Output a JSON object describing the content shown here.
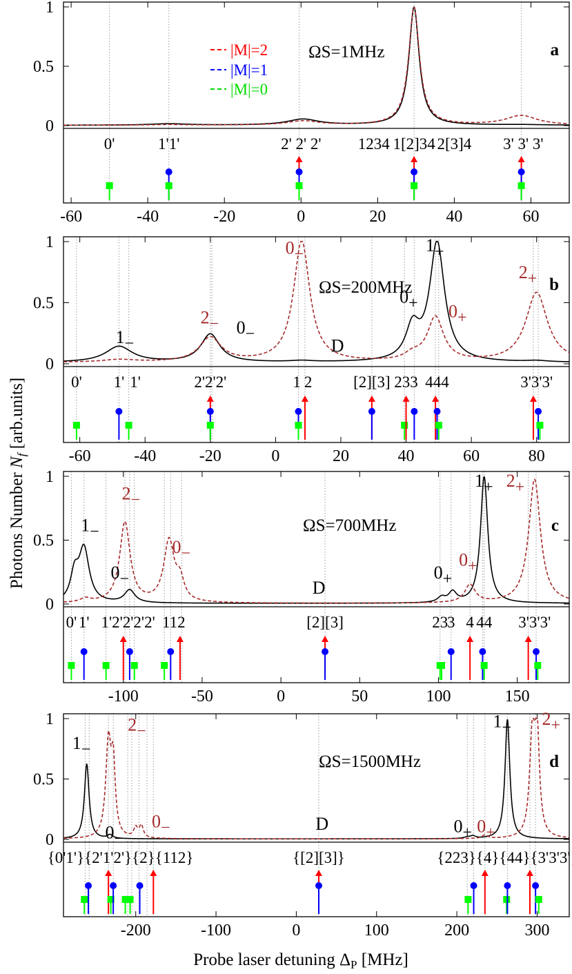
{
  "figure": {
    "ylabel": "Photons Number N_f [arb.units]",
    "ylabel_main": "Photons Number ",
    "ylabel_sym": "N",
    "ylabel_sub": "f",
    "ylabel_unit": " [arb.units]",
    "xlabel_pre": "Probe laser detuning Δ",
    "xlabel_sub": "P",
    "xlabel_post": " [MHz]",
    "legend": [
      {
        "label": "|M|=2",
        "color": "#ff0000"
      },
      {
        "label": "|M|=1",
        "color": "#0000ff"
      },
      {
        "label": "|M|=0",
        "color": "#00dd00"
      }
    ]
  },
  "colors": {
    "solid_curve": "#000000",
    "dashed_curve": "#a52a2a",
    "M2": "#ff0000",
    "M1": "#0000ff",
    "M0": "#00ff00",
    "guide": "#999999",
    "peak_label_red": "#a52a2a"
  },
  "chart_data": [
    {
      "type": "line",
      "panel": "a",
      "omega_label": "ΩS=1MHz",
      "xlim": [
        -62,
        70
      ],
      "ylim": [
        0,
        1
      ],
      "xticks": [
        -60,
        -40,
        -20,
        0,
        20,
        40,
        60
      ],
      "yticks": [
        0,
        0.5,
        1
      ],
      "ytick_labels": [
        "0",
        "0.5",
        "1"
      ],
      "grid": false,
      "series": [
        {
          "style": "solid",
          "baseline": 0.003,
          "peaks": [
            {
              "x": 29.5,
              "h": 0.995,
              "w": 1.6
            },
            {
              "x": 0.5,
              "h": 0.05,
              "w": 5
            },
            {
              "x": -34.5,
              "h": 0.012,
              "w": 6
            },
            {
              "x": 57.5,
              "h": 0.004,
              "w": 6
            }
          ]
        },
        {
          "style": "dashed",
          "baseline": 0.003,
          "peaks": [
            {
              "x": 29.5,
              "h": 0.99,
              "w": 1.7
            },
            {
              "x": 0.5,
              "h": 0.035,
              "w": 5
            },
            {
              "x": -34.5,
              "h": 0.005,
              "w": 6
            },
            {
              "x": 57.5,
              "h": 0.08,
              "w": 5
            }
          ]
        }
      ],
      "guides": [
        -34.5,
        -0.5,
        29.5,
        57.5,
        -50
      ],
      "levels": [
        {
          "x": -50,
          "m": 0
        },
        {
          "x": -34.5,
          "m": 1
        },
        {
          "x": -34.5,
          "m": 0
        },
        {
          "x": -0.5,
          "m": 2
        },
        {
          "x": -0.5,
          "m": 1
        },
        {
          "x": -0.5,
          "m": 0
        },
        {
          "x": 29.5,
          "m": 2
        },
        {
          "x": 29.5,
          "m": 1
        },
        {
          "x": 29.5,
          "m": 0
        },
        {
          "x": 57.5,
          "m": 2
        },
        {
          "x": 57.5,
          "m": 1
        },
        {
          "x": 57.5,
          "m": 0
        }
      ],
      "state_labels": [
        {
          "text": "0'",
          "x": -50
        },
        {
          "text": "1'1'",
          "x": -34.5
        },
        {
          "text": "2' 2' 2'",
          "x": 0
        },
        {
          "text": "1234",
          "x": 19
        },
        {
          "text": "1[2]34",
          "x": 29.5
        },
        {
          "text": "2[3]4",
          "x": 40
        },
        {
          "text": "3' 3' 3'",
          "x": 58
        }
      ],
      "peak_labels": []
    },
    {
      "type": "line",
      "panel": "b",
      "omega_label": "ΩS=200MHz",
      "xlim": [
        -65,
        90
      ],
      "ylim": [
        0,
        1
      ],
      "xticks": [
        -60,
        -40,
        -20,
        0,
        20,
        40,
        60,
        80
      ],
      "yticks": [
        0,
        0.5,
        1
      ],
      "ytick_labels": [
        "0",
        "0.5",
        "1"
      ],
      "grid": false,
      "series": [
        {
          "style": "solid",
          "baseline": 0.01,
          "peaks": [
            {
              "x": 49.5,
              "h": 0.97,
              "w": 2.8
            },
            {
              "x": 42,
              "h": 0.26,
              "w": 2.5
            },
            {
              "x": -48,
              "h": 0.13,
              "w": 5
            },
            {
              "x": -20,
              "h": 0.23,
              "w": 3.5
            },
            {
              "x": 80,
              "h": 0.01,
              "w": 4
            },
            {
              "x": 8,
              "h": 0.01,
              "w": 4
            }
          ]
        },
        {
          "style": "dashed",
          "baseline": 0.01,
          "peaks": [
            {
              "x": 8,
              "h": 0.99,
              "w": 3
            },
            {
              "x": 80,
              "h": 0.57,
              "w": 4
            },
            {
              "x": 49,
              "h": 0.36,
              "w": 3
            },
            {
              "x": -20,
              "h": 0.2,
              "w": 4
            },
            {
              "x": -48,
              "h": 0.02,
              "w": 6
            },
            {
              "x": 42,
              "h": 0.05,
              "w": 3
            }
          ]
        }
      ],
      "guides": [
        -61,
        -48,
        -45,
        -20,
        -19.5,
        7,
        9,
        29.5,
        39.5,
        42.5,
        49,
        50,
        79,
        80.5
      ],
      "levels": [
        {
          "x": -61,
          "m": 0
        },
        {
          "x": -48,
          "m": 1
        },
        {
          "x": -45,
          "m": 0
        },
        {
          "x": -20,
          "m": 2
        },
        {
          "x": -20,
          "m": 1
        },
        {
          "x": -20,
          "m": 0
        },
        {
          "x": 7,
          "m": 1
        },
        {
          "x": 7,
          "m": 0
        },
        {
          "x": 9,
          "m": 2
        },
        {
          "x": 29.5,
          "m": 2
        },
        {
          "x": 29.5,
          "m": 1
        },
        {
          "x": 39.5,
          "m": 0
        },
        {
          "x": 40,
          "m": 2
        },
        {
          "x": 42.5,
          "m": 1
        },
        {
          "x": 49,
          "m": 2
        },
        {
          "x": 49.5,
          "m": 1
        },
        {
          "x": 50,
          "m": 0
        },
        {
          "x": 79,
          "m": 2
        },
        {
          "x": 80.5,
          "m": 1
        },
        {
          "x": 81,
          "m": 0
        }
      ],
      "state_labels": [
        {
          "text": "0'",
          "x": -61
        },
        {
          "text": "1'",
          "x": -48
        },
        {
          "text": "1'",
          "x": -43
        },
        {
          "text": "2'2'2'",
          "x": -20
        },
        {
          "text": "1",
          "x": 6.5
        },
        {
          "text": "2",
          "x": 10
        },
        {
          "text": "[2][3]",
          "x": 29.5
        },
        {
          "text": "233",
          "x": 40
        },
        {
          "text": "444",
          "x": 49.5
        },
        {
          "text": "3'3'3'",
          "x": 80
        }
      ],
      "peak_labels": [
        {
          "base": "1",
          "sign": "−",
          "x": -49,
          "y": 0.17,
          "color": "#000000"
        },
        {
          "base": "2",
          "sign": "−",
          "x": -23,
          "y": 0.33,
          "color": "#a52a2a"
        },
        {
          "base": "0",
          "sign": "−",
          "x": -12,
          "y": 0.25,
          "color": "#000000"
        },
        {
          "base": "0",
          "sign": "−",
          "x": 3,
          "y": 0.9,
          "color": "#a52a2a"
        },
        {
          "base": "1",
          "sign": "+",
          "x": 46,
          "y": 0.92,
          "color": "#000000"
        },
        {
          "base": "0",
          "sign": "+",
          "x": 38,
          "y": 0.5,
          "color": "#000000"
        },
        {
          "base": "0",
          "sign": "+",
          "x": 53,
          "y": 0.38,
          "color": "#a52a2a"
        },
        {
          "base": "2",
          "sign": "+",
          "x": 74.5,
          "y": 0.7,
          "color": "#a52a2a"
        },
        {
          "base": "D",
          "sign": "",
          "x": 17,
          "y": 0.1,
          "color": "#000000"
        }
      ]
    },
    {
      "type": "line",
      "panel": "c",
      "omega_label": "ΩS=700MHz",
      "xlim": [
        -138,
        183
      ],
      "ylim": [
        0,
        1
      ],
      "xticks": [
        -100,
        -50,
        0,
        50,
        100,
        150
      ],
      "yticks": [
        0,
        0.5,
        1
      ],
      "ytick_labels": [
        "0",
        "0.5",
        "1"
      ],
      "grid": false,
      "series": [
        {
          "style": "solid",
          "baseline": 0.005,
          "peaks": [
            {
              "x": 129,
              "h": 0.99,
              "w": 2.8
            },
            {
              "x": -125,
              "h": 0.42,
              "w": 4
            },
            {
              "x": -131,
              "h": 0.2,
              "w": 3
            },
            {
              "x": -96,
              "h": 0.1,
              "w": 4
            },
            {
              "x": 102,
              "h": 0.04,
              "w": 3
            },
            {
              "x": 109,
              "h": 0.08,
              "w": 3
            }
          ]
        },
        {
          "style": "dashed",
          "baseline": 0.005,
          "peaks": [
            {
              "x": 161,
              "h": 0.97,
              "w": 4.5
            },
            {
              "x": -99,
              "h": 0.63,
              "w": 4
            },
            {
              "x": -71,
              "h": 0.48,
              "w": 4
            },
            {
              "x": -64,
              "h": 0.15,
              "w": 3
            },
            {
              "x": 120,
              "h": 0.14,
              "w": 4
            },
            {
              "x": -124,
              "h": 0.03,
              "w": 4
            }
          ]
        }
      ],
      "guides": [
        -133,
        -125,
        -111,
        -99,
        -96,
        -93,
        -74,
        -70,
        -63,
        28,
        101,
        108,
        120,
        128,
        129,
        157,
        162
      ],
      "levels": [
        {
          "x": -133,
          "m": 0
        },
        {
          "x": -125,
          "m": 1
        },
        {
          "x": -111,
          "m": 0
        },
        {
          "x": -100,
          "m": 2
        },
        {
          "x": -96,
          "m": 1
        },
        {
          "x": -93,
          "m": 0
        },
        {
          "x": -74,
          "m": 0
        },
        {
          "x": -70,
          "m": 1
        },
        {
          "x": -64,
          "m": 2
        },
        {
          "x": 28,
          "m": 2
        },
        {
          "x": 28,
          "m": 1
        },
        {
          "x": 101,
          "m": 0
        },
        {
          "x": 102,
          "m": 0
        },
        {
          "x": 108,
          "m": 1
        },
        {
          "x": 120,
          "m": 2
        },
        {
          "x": 128,
          "m": 1
        },
        {
          "x": 129,
          "m": 0
        },
        {
          "x": 157,
          "m": 2
        },
        {
          "x": 162,
          "m": 1
        },
        {
          "x": 163,
          "m": 0
        }
      ],
      "state_labels": [
        {
          "text": "0'",
          "x": -133
        },
        {
          "text": "1'",
          "x": -125
        },
        {
          "text": "1'2'2'2'2'",
          "x": -97
        },
        {
          "text": "112",
          "x": -68
        },
        {
          "text": "[2][3]",
          "x": 28
        },
        {
          "text": "23",
          "x": 101
        },
        {
          "text": "3",
          "x": 108
        },
        {
          "text": "4",
          "x": 120
        },
        {
          "text": "44",
          "x": 129
        },
        {
          "text": "3'3'3'",
          "x": 161
        }
      ],
      "peak_labels": [
        {
          "base": "1",
          "sign": "−",
          "x": -127,
          "y": 0.57,
          "color": "#000000"
        },
        {
          "base": "2",
          "sign": "−",
          "x": -101,
          "y": 0.82,
          "color": "#a52a2a"
        },
        {
          "base": "0",
          "sign": "−",
          "x": -69,
          "y": 0.4,
          "color": "#a52a2a"
        },
        {
          "base": "0",
          "sign": "−",
          "x": -108,
          "y": 0.2,
          "color": "#000000"
        },
        {
          "base": "D",
          "sign": "",
          "x": 20,
          "y": 0.08,
          "color": "#000000"
        },
        {
          "base": "0",
          "sign": "+",
          "x": 97,
          "y": 0.2,
          "color": "#000000"
        },
        {
          "base": "0",
          "sign": "+",
          "x": 113,
          "y": 0.3,
          "color": "#a52a2a"
        },
        {
          "base": "1",
          "sign": "+",
          "x": 123,
          "y": 0.92,
          "color": "#000000"
        },
        {
          "base": "2",
          "sign": "+",
          "x": 143,
          "y": 0.92,
          "color": "#a52a2a"
        }
      ]
    },
    {
      "type": "line",
      "panel": "d",
      "omega_label": "ΩS=1500MHz",
      "xlim": [
        -290,
        340
      ],
      "ylim": [
        0,
        1
      ],
      "xticks": [
        -200,
        -100,
        0,
        100,
        200,
        300
      ],
      "yticks": [
        0,
        0.5,
        1
      ],
      "ytick_labels": [
        "0",
        "0.5",
        "1"
      ],
      "grid": false,
      "series": [
        {
          "style": "solid",
          "baseline": 0.004,
          "peaks": [
            {
              "x": 263,
              "h": 0.99,
              "w": 3.6
            },
            {
              "x": -261,
              "h": 0.62,
              "w": 3.5
            },
            {
              "x": -232,
              "h": 0.03,
              "w": 4
            },
            {
              "x": 213,
              "h": 0.01,
              "w": 5
            },
            {
              "x": 220,
              "h": 0.02,
              "w": 4
            }
          ]
        },
        {
          "style": "dashed",
          "baseline": 0.004,
          "peaks": [
            {
              "x": -234,
              "h": 0.78,
              "w": 4
            },
            {
              "x": -228,
              "h": 0.55,
              "w": 3
            },
            {
              "x": -200,
              "h": 0.08,
              "w": 3
            },
            {
              "x": -193,
              "h": 0.1,
              "w": 3
            },
            {
              "x": 294,
              "h": 0.8,
              "w": 4
            },
            {
              "x": 300,
              "h": 0.8,
              "w": 3.5
            },
            {
              "x": 235,
              "h": 0.03,
              "w": 4
            }
          ]
        }
      ],
      "guides": [
        -263,
        -258,
        -234,
        -228,
        -210,
        -205,
        -196,
        -186,
        -178,
        28,
        213,
        221,
        235,
        263,
        291,
        298
      ],
      "levels": [
        {
          "x": -264,
          "m": 0
        },
        {
          "x": -259,
          "m": 1
        },
        {
          "x": -234,
          "m": 2
        },
        {
          "x": -231,
          "m": 0
        },
        {
          "x": -228,
          "m": 1
        },
        {
          "x": -213,
          "m": 0
        },
        {
          "x": -207,
          "m": 0
        },
        {
          "x": -195,
          "m": 1
        },
        {
          "x": -178,
          "m": 2
        },
        {
          "x": 28,
          "m": 2
        },
        {
          "x": 28,
          "m": 1
        },
        {
          "x": 214,
          "m": 0
        },
        {
          "x": 221,
          "m": 1
        },
        {
          "x": 235,
          "m": 2
        },
        {
          "x": 262,
          "m": 0
        },
        {
          "x": 263,
          "m": 1
        },
        {
          "x": 291,
          "m": 2
        },
        {
          "x": 298,
          "m": 1
        },
        {
          "x": 302,
          "m": 0
        }
      ],
      "state_labels": [
        {
          "text": "{0'1'}{2'1'2'}{2}{112}",
          "x": -219
        },
        {
          "text": "{[2][3]}",
          "x": 28
        },
        {
          "text": "{223}{4}{44}{3'3'3'}",
          "x": 263
        }
      ],
      "peak_labels": [
        {
          "base": "1",
          "sign": "−",
          "x": -279,
          "y": 0.75,
          "color": "#000000"
        },
        {
          "base": "2",
          "sign": "−",
          "x": -210,
          "y": 0.9,
          "color": "#a52a2a"
        },
        {
          "base": "0",
          "sign": "−",
          "x": -180,
          "y": 0.1,
          "color": "#a52a2a"
        },
        {
          "base": "0",
          "sign": "−",
          "x": -238,
          "y": 0.01,
          "color": "#000000"
        },
        {
          "base": "D",
          "sign": "",
          "x": 24,
          "y": 0.08,
          "color": "#000000"
        },
        {
          "base": "0",
          "sign": "+",
          "x": 196,
          "y": 0.06,
          "color": "#000000"
        },
        {
          "base": "0",
          "sign": "+",
          "x": 225,
          "y": 0.06,
          "color": "#a52a2a"
        },
        {
          "base": "1",
          "sign": "+",
          "x": 245,
          "y": 0.93,
          "color": "#000000"
        },
        {
          "base": "2",
          "sign": "+",
          "x": 306,
          "y": 0.95,
          "color": "#a52a2a"
        }
      ]
    }
  ]
}
